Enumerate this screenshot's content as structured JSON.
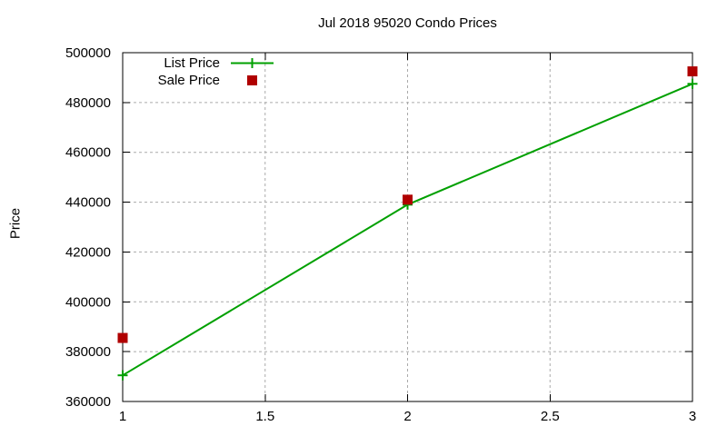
{
  "chart_data": {
    "type": "line",
    "title": "Jul 2018 95020 Condo Prices",
    "xlabel": "",
    "ylabel": "Price",
    "x": [
      1,
      2,
      3
    ],
    "series": [
      {
        "name": "List Price",
        "style": "line-with-plus-markers",
        "color": "#00a000",
        "values": [
          370500,
          439000,
          487500
        ]
      },
      {
        "name": "Sale Price",
        "style": "square-markers",
        "color": "#b00000",
        "values": [
          385500,
          441000,
          492500
        ]
      }
    ],
    "xlim": [
      1,
      3
    ],
    "ylim": [
      360000,
      500000
    ],
    "xticks": [
      1,
      1.5,
      2,
      2.5,
      3
    ],
    "yticks": [
      360000,
      380000,
      400000,
      420000,
      440000,
      460000,
      480000,
      500000
    ],
    "grid": true,
    "grid_color": "#aaaaaa",
    "axis_color": "#000000",
    "legend_position": "top-left-inside"
  }
}
